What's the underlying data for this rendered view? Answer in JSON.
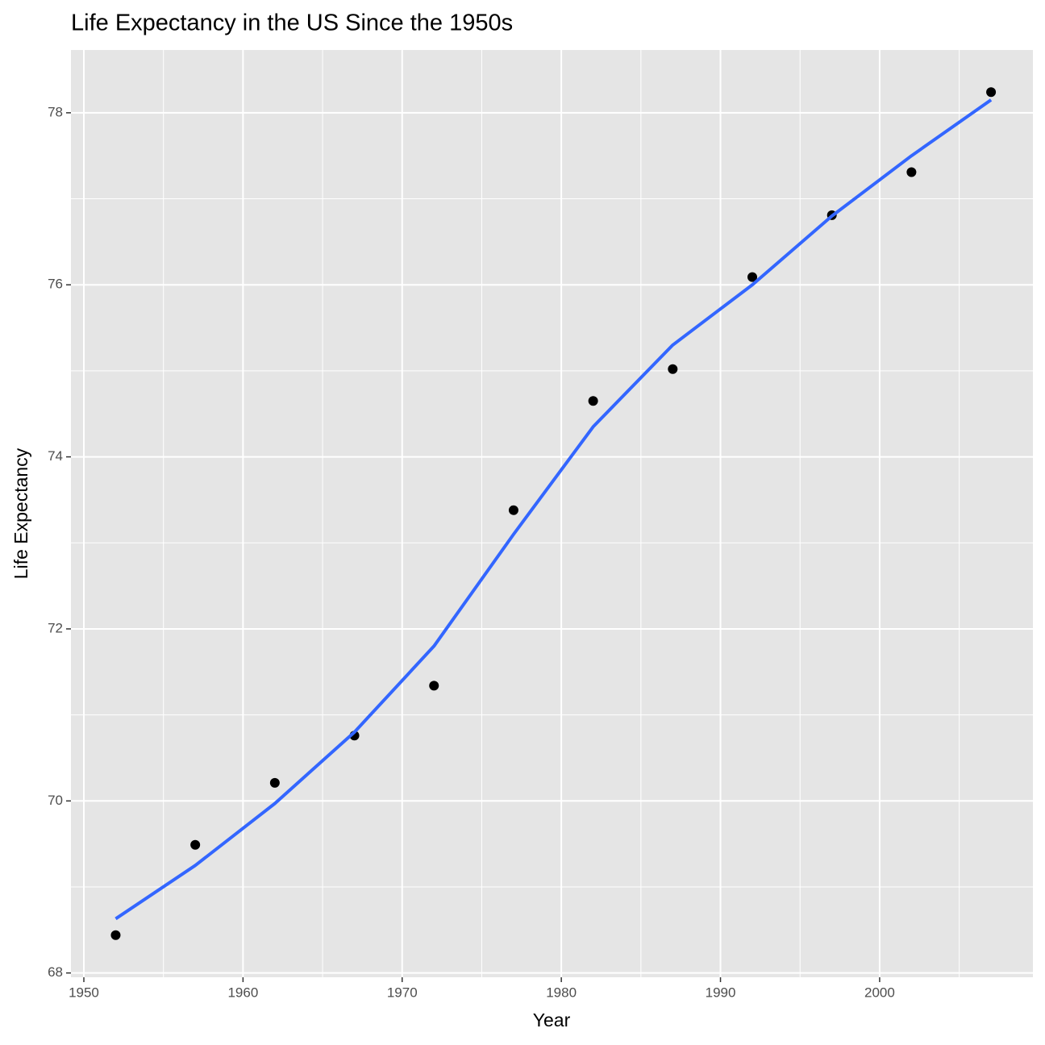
{
  "chart_data": {
    "type": "scatter",
    "title": "Life Expectancy in the US Since the 1950s",
    "x_label": "Year",
    "y_label": "Life Expectancy",
    "series": [
      {
        "type": "scatter",
        "color": "#000000",
        "x": [
          1952,
          1957,
          1962,
          1967,
          1972,
          1977,
          1982,
          1987,
          1992,
          1997,
          2002,
          2007
        ],
        "values": [
          68.44,
          69.49,
          70.21,
          70.76,
          71.34,
          73.38,
          74.65,
          75.02,
          76.09,
          76.81,
          77.31,
          78.24
        ]
      },
      {
        "type": "line",
        "color": "#3366ff",
        "x": [
          1952,
          1957,
          1962,
          1967,
          1972,
          1977,
          1982,
          1987,
          1992,
          1997,
          2002,
          2007
        ],
        "values": [
          68.63,
          69.25,
          69.97,
          70.8,
          71.8,
          73.1,
          74.35,
          75.3,
          76.0,
          76.8,
          77.5,
          78.15
        ]
      }
    ],
    "xlim": [
      1949.19,
      2009.63
    ],
    "ylim": [
      67.95,
      78.73
    ],
    "xticks": [
      1950,
      1960,
      1970,
      1980,
      1990,
      2000
    ],
    "yticks": [
      68,
      70,
      72,
      74,
      76,
      78
    ],
    "x_minor_grid": [
      1955,
      1965,
      1975,
      1985,
      1995,
      2005
    ],
    "y_minor_grid": [
      69,
      71,
      73,
      75,
      77
    ],
    "grid": true
  }
}
